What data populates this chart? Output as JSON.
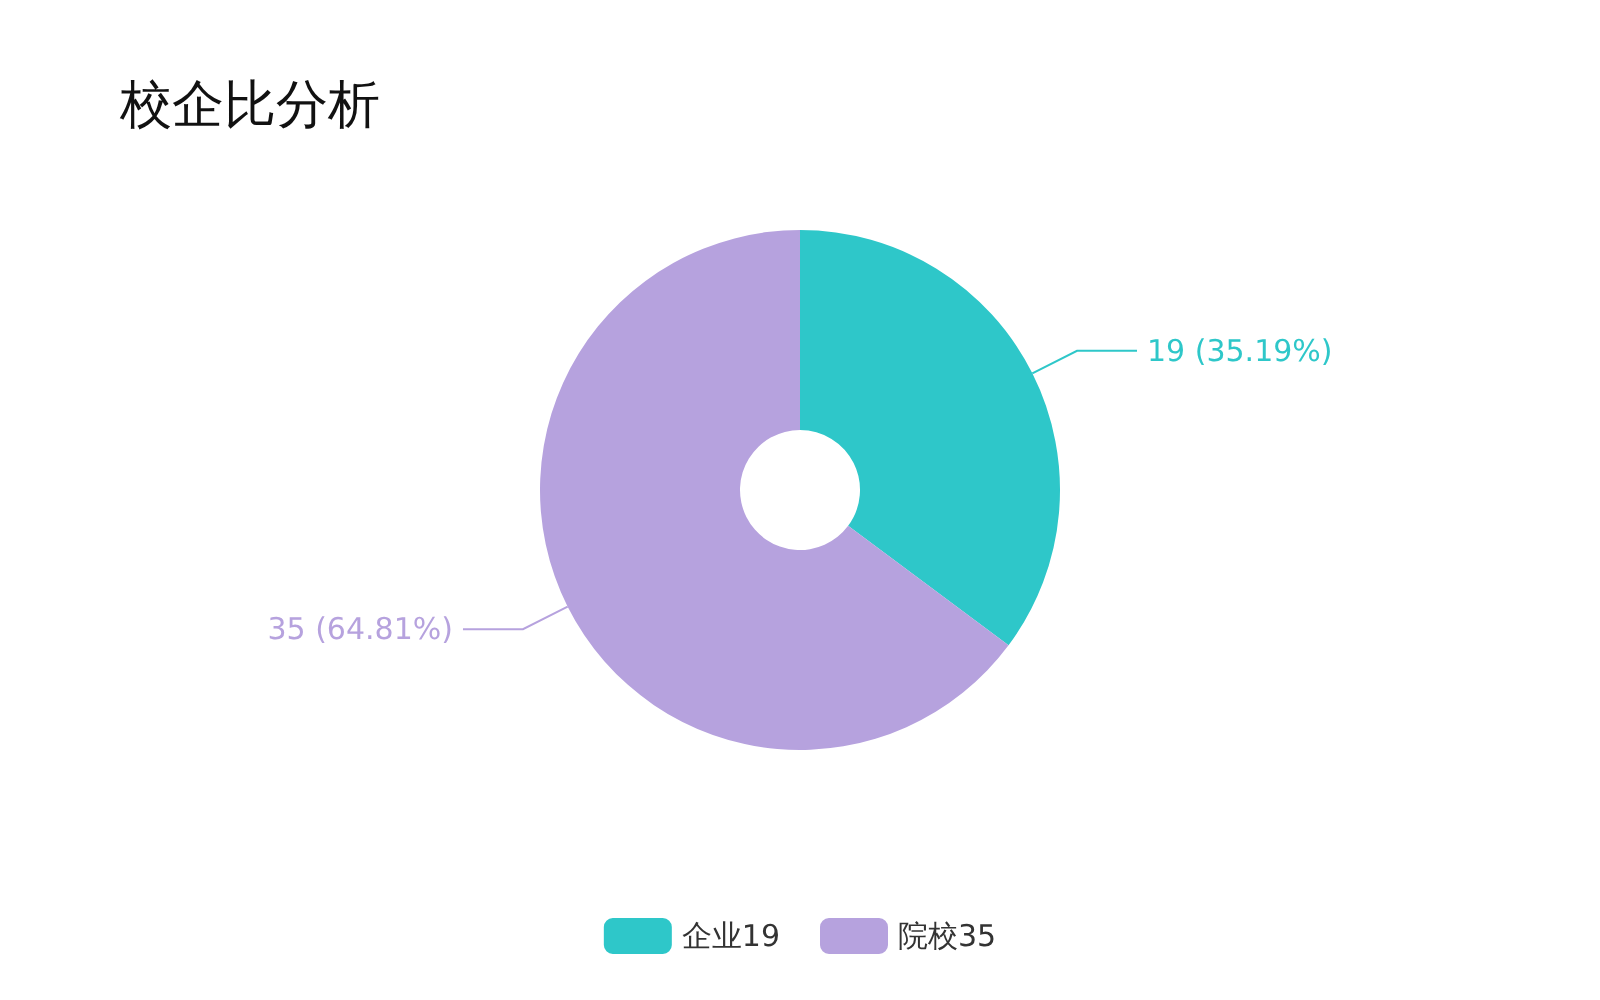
{
  "chart_data": {
    "type": "donut",
    "title": "校企比分析",
    "categories": [
      "企业19",
      "院校35"
    ],
    "values": [
      19,
      35
    ],
    "colors": [
      "#2ec7c9",
      "#b6a2de"
    ],
    "value_labels": [
      "19 (35.19%)",
      "35 (64.81%)"
    ],
    "legend": "bottom"
  }
}
